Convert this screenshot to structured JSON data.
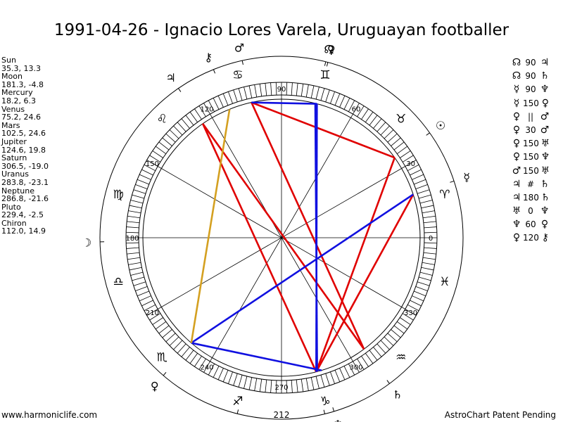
{
  "title": "1991-04-26 - Ignacio Lores Varela, Uruguayan footballer",
  "planets": [
    {
      "name": "Sun",
      "coords": "35.3, 13.3",
      "glyph": "☉",
      "icon": "sun-icon",
      "longitude": 35.3
    },
    {
      "name": "Moon",
      "coords": "181.3, -4.8",
      "glyph": "☽",
      "icon": "moon-icon",
      "longitude": 181.3
    },
    {
      "name": "Mercury",
      "coords": "18.2, 6.3",
      "glyph": "☿",
      "icon": "mercury-icon",
      "longitude": 18.2
    },
    {
      "name": "Venus",
      "coords": "75.2, 24.6",
      "glyph": "♀",
      "icon": "venus-icon",
      "longitude": 75.2
    },
    {
      "name": "Mars",
      "coords": "102.5, 24.6",
      "glyph": "♂",
      "icon": "mars-icon",
      "longitude": 102.5
    },
    {
      "name": "Jupiter",
      "coords": "124.6, 19.8",
      "glyph": "♃",
      "icon": "jupiter-icon",
      "longitude": 124.6
    },
    {
      "name": "Saturn",
      "coords": "306.5, -19.0",
      "glyph": "♄",
      "icon": "saturn-icon",
      "longitude": 306.5
    },
    {
      "name": "Uranus",
      "coords": "283.8, -23.1",
      "glyph": "♅",
      "icon": "uranus-icon",
      "longitude": 283.8
    },
    {
      "name": "Neptune",
      "coords": "286.8, -21.6",
      "glyph": "♆",
      "icon": "neptune-icon",
      "longitude": 286.8
    },
    {
      "name": "Pluto",
      "coords": "229.4, -2.5",
      "glyph": "♀",
      "icon": "pluto-icon",
      "longitude": 229.4
    },
    {
      "name": "Chiron",
      "coords": "112.0, 14.9",
      "glyph": "⚷",
      "icon": "chiron-icon",
      "longitude": 112.0
    }
  ],
  "aspects": [
    {
      "p1": "☊",
      "p1_icon": "node-icon",
      "angle": "90",
      "p2": "♃",
      "p2_icon": "jupiter-icon"
    },
    {
      "p1": "☊",
      "p1_icon": "node-icon",
      "angle": "90",
      "p2": "♄",
      "p2_icon": "saturn-icon"
    },
    {
      "p1": "☿",
      "p1_icon": "mercury-icon",
      "angle": "90",
      "p2": "♆",
      "p2_icon": "neptune-icon"
    },
    {
      "p1": "☿",
      "p1_icon": "mercury-icon",
      "angle": "150",
      "p2": "♀",
      "p2_icon": "pluto-icon"
    },
    {
      "p1": "♀",
      "p1_icon": "venus-icon",
      "angle": "||",
      "p2": "♂",
      "p2_icon": "mars-icon"
    },
    {
      "p1": "♀",
      "p1_icon": "venus-icon",
      "angle": "30",
      "p2": "♂",
      "p2_icon": "mars-icon"
    },
    {
      "p1": "♀",
      "p1_icon": "venus-icon",
      "angle": "150",
      "p2": "♅",
      "p2_icon": "uranus-icon"
    },
    {
      "p1": "♀",
      "p1_icon": "venus-icon",
      "angle": "150",
      "p2": "♆",
      "p2_icon": "neptune-icon"
    },
    {
      "p1": "♂",
      "p1_icon": "mars-icon",
      "angle": "150",
      "p2": "♅",
      "p2_icon": "uranus-icon"
    },
    {
      "p1": "♃",
      "p1_icon": "jupiter-icon",
      "angle": "#",
      "p2": "♄",
      "p2_icon": "saturn-icon"
    },
    {
      "p1": "♃",
      "p1_icon": "jupiter-icon",
      "angle": "180",
      "p2": "♄",
      "p2_icon": "saturn-icon"
    },
    {
      "p1": "♅",
      "p1_icon": "uranus-icon",
      "angle": "0",
      "p2": "♆",
      "p2_icon": "neptune-icon"
    },
    {
      "p1": "♆",
      "p1_icon": "neptune-icon",
      "angle": "60",
      "p2": "♀",
      "p2_icon": "pluto-icon"
    },
    {
      "p1": "♀",
      "p1_icon": "venus-icon",
      "angle": "120",
      "p2": "⚷",
      "p2_icon": "chiron-icon"
    }
  ],
  "wheel": {
    "degree_labels": [
      {
        "text": "0",
        "deg": 0
      },
      {
        "text": "30",
        "deg": 30
      },
      {
        "text": "60",
        "deg": 60
      },
      {
        "text": "90",
        "deg": 90
      },
      {
        "text": "120",
        "deg": 120
      },
      {
        "text": "150",
        "deg": 150
      },
      {
        "text": "180",
        "deg": 180
      },
      {
        "text": "210",
        "deg": 210
      },
      {
        "text": "240",
        "deg": 240
      },
      {
        "text": "270",
        "deg": 270
      },
      {
        "text": "300",
        "deg": 300
      },
      {
        "text": "330",
        "deg": 330
      }
    ],
    "extra_label": "212",
    "zodiac_signs": [
      {
        "glyph": "♈",
        "deg": 15,
        "icon": "aries-icon"
      },
      {
        "glyph": "♉",
        "deg": 45,
        "icon": "taurus-icon"
      },
      {
        "glyph": "♊",
        "deg": 75,
        "icon": "gemini-icon"
      },
      {
        "glyph": "♋",
        "deg": 105,
        "icon": "cancer-icon"
      },
      {
        "glyph": "♌",
        "deg": 135,
        "icon": "leo-icon"
      },
      {
        "glyph": "♍",
        "deg": 165,
        "icon": "virgo-icon"
      },
      {
        "glyph": "♎",
        "deg": 195,
        "icon": "libra-icon"
      },
      {
        "glyph": "♏",
        "deg": 225,
        "icon": "scorpio-icon"
      },
      {
        "glyph": "♐",
        "deg": 255,
        "icon": "sagittarius-icon"
      },
      {
        "glyph": "♑",
        "deg": 285,
        "icon": "capricorn-icon"
      },
      {
        "glyph": "♒",
        "deg": 315,
        "icon": "aquarius-icon"
      },
      {
        "glyph": "♓",
        "deg": 345,
        "icon": "pisces-icon"
      }
    ],
    "chart_planets": [
      {
        "glyph": "☉",
        "deg": 35.3,
        "icon": "sun-icon"
      },
      {
        "glyph": "☿",
        "deg": 18.2,
        "icon": "mercury-icon"
      },
      {
        "glyph": "♀",
        "deg": 75.2,
        "icon": "venus-icon"
      },
      {
        "glyph": "♂",
        "deg": 102.5,
        "icon": "mars-icon"
      },
      {
        "glyph": "♃",
        "deg": 124.6,
        "icon": "jupiter-icon"
      },
      {
        "glyph": "⚷",
        "deg": 112.0,
        "icon": "chiron-icon"
      },
      {
        "glyph": "☽",
        "deg": 181.3,
        "icon": "moon-icon"
      },
      {
        "glyph": "♀",
        "deg": 229.4,
        "icon": "pluto-icon"
      },
      {
        "glyph": "♅",
        "deg": 283.8,
        "icon": "uranus-icon"
      },
      {
        "glyph": "♆",
        "deg": 286.8,
        "icon": "neptune-icon"
      },
      {
        "glyph": "♄",
        "deg": 306.5,
        "icon": "saturn-icon"
      },
      {
        "glyph": "☊",
        "deg": 75.9,
        "icon": "node-icon"
      },
      {
        "glyph": "☋",
        "deg": 255.9,
        "icon": "south-node-icon"
      }
    ],
    "lines": [
      {
        "from": 35.3,
        "to": 102.5,
        "color": "#e00000"
      },
      {
        "from": 35.3,
        "to": 284.5,
        "color": "#e00000"
      },
      {
        "from": 124.6,
        "to": 306.5,
        "color": "#e00000"
      },
      {
        "from": 124.6,
        "to": 284.5,
        "color": "#e00000"
      },
      {
        "from": 102.5,
        "to": 306.5,
        "color": "#e00000"
      },
      {
        "from": 18.2,
        "to": 284.5,
        "color": "#e00000"
      },
      {
        "from": 75.2,
        "to": 284.5,
        "color": "#1010e0"
      },
      {
        "from": 75.9,
        "to": 284.9,
        "color": "#1010e0"
      },
      {
        "from": 18.2,
        "to": 229.4,
        "color": "#1010e0"
      },
      {
        "from": 229.4,
        "to": 286.8,
        "color": "#1010e0"
      },
      {
        "from": 229.4,
        "to": 112.0,
        "color": "#d4a020"
      },
      {
        "from": 102.5,
        "to": 75.2,
        "color": "#1010e0"
      }
    ],
    "colors": {
      "aspect_red": "#e00000",
      "aspect_blue": "#1010e0",
      "aspect_gold": "#d4a020",
      "planet_red": "#c00000"
    }
  },
  "footer": {
    "left": "www.harmoniclife.com",
    "right": "AstroChart Patent Pending"
  }
}
